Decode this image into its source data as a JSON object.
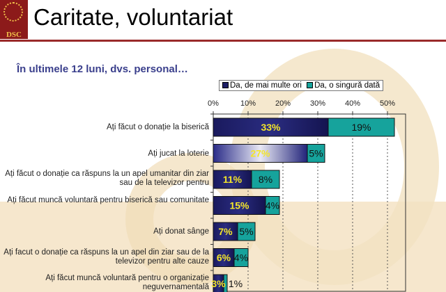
{
  "header": {
    "title": "Caritate, voluntariat",
    "logo_text": "DSC"
  },
  "chart_data": {
    "type": "bar",
    "orientation": "horizontal",
    "stacked": true,
    "title": "În ultimele 12 luni, dvs. personal…",
    "categories": [
      "Ați făcut o donație la biserică",
      "Ați jucat la loterie",
      "Ați făcut o donație ca răspuns la un apel umanitar din ziar sau de la televizor pentru",
      "Ați făcut muncă voluntară pentru biserică sau comunitate",
      "Ați donat sânge",
      "Ați facut o donație ca răspuns la un apel din ziar sau de la televizor pentru alte cauze",
      "Ați făcut muncă voluntară pentru o organizație neguvernamentală"
    ],
    "series": [
      {
        "name": "Da, de mai multe ori",
        "values": [
          33,
          27,
          11,
          15,
          7,
          6,
          3
        ],
        "color": "#1e1f66"
      },
      {
        "name": "Da, o singură dată",
        "values": [
          19,
          5,
          8,
          4,
          5,
          4,
          1
        ],
        "color": "#16a39c"
      }
    ],
    "xlim": [
      0,
      55
    ],
    "xticks": [
      "0%",
      "10%",
      "20%",
      "30%",
      "40%",
      "50%"
    ],
    "legend": "top",
    "grid": "vertical dotted"
  }
}
